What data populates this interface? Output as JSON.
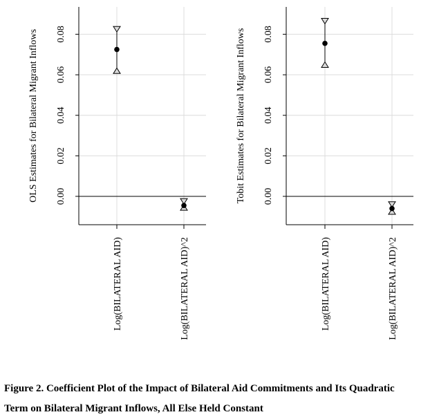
{
  "caption": {
    "line1": "Figure 2. Coefficient Plot of the Impact of Bilateral Aid Commitments and Its Quadratic",
    "line2": "Term on Bilateral Migrant Inflows, All Else Held Constant"
  },
  "chart_data": [
    {
      "type": "scatter",
      "title": "",
      "xlabel": "",
      "ylabel": "OLS Estimates for Bilateral Migrant Inflows",
      "categories": [
        "Log(BILATERAL AID)",
        "Log(BILATERAL AID)^2"
      ],
      "estimates": [
        0.0725,
        -0.0045
      ],
      "lower": [
        0.062,
        -0.0055
      ],
      "upper": [
        0.0825,
        -0.0025
      ],
      "ylim": [
        -0.014,
        0.0935
      ],
      "yticks": [
        0.0,
        0.02,
        0.04,
        0.06,
        0.08
      ],
      "ytick_labels": [
        "0.00",
        "0.02",
        "0.04",
        "0.06",
        "0.08"
      ],
      "reference_line": 0,
      "grid": true
    },
    {
      "type": "scatter",
      "title": "",
      "xlabel": "",
      "ylabel": "Tobit Estimates for Bilateral Migrant Inflows",
      "categories": [
        "Log(BILATERAL AID)",
        "Log(BILATERAL AID)^2"
      ],
      "estimates": [
        0.0755,
        -0.006
      ],
      "lower": [
        0.065,
        -0.0075
      ],
      "upper": [
        0.0865,
        -0.004
      ],
      "ylim": [
        -0.014,
        0.0935
      ],
      "yticks": [
        0.0,
        0.02,
        0.04,
        0.06,
        0.08
      ],
      "ytick_labels": [
        "0.00",
        "0.02",
        "0.04",
        "0.06",
        "0.08"
      ],
      "reference_line": 0,
      "grid": true
    }
  ]
}
